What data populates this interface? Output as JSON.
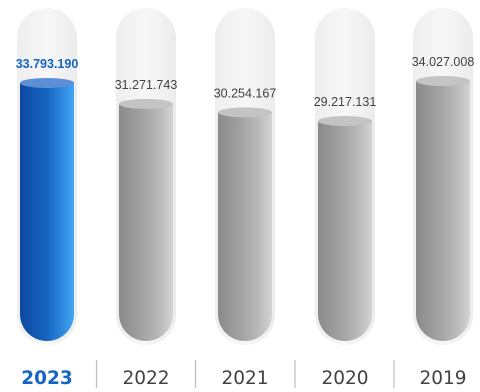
{
  "colors": {
    "highlight": "#1565c0",
    "fill": "#9e9e9e",
    "text": "#424242",
    "tube": "#f2f2f2",
    "separator": "#bdbdbd"
  },
  "chart_data": {
    "type": "bar",
    "categories": [
      "2023",
      "2022",
      "2021",
      "2020",
      "2019"
    ],
    "values": [
      33793190,
      31271743,
      30254167,
      29217131,
      34027008
    ],
    "value_labels": [
      "33.793.190",
      "31.271.743",
      "30.254.167",
      "29.217.131",
      "34.027.008"
    ],
    "highlighted_index": 0,
    "title": "",
    "xlabel": "",
    "ylabel": "",
    "grid": false,
    "legend": "none"
  }
}
